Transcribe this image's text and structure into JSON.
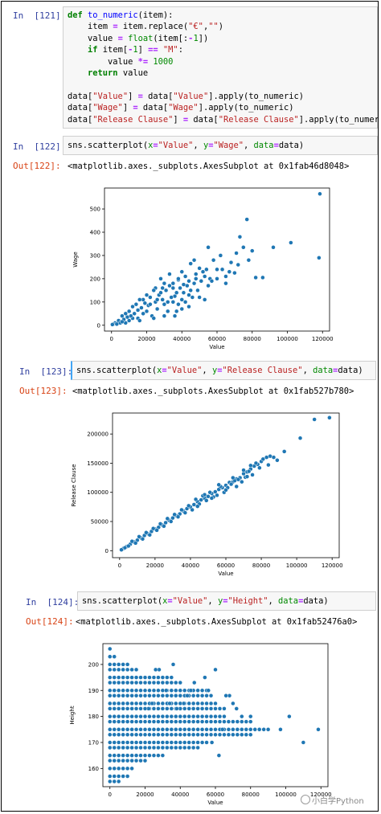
{
  "cells": [
    {
      "in_prompt": "In  [121]:",
      "code": [
        "def to_numeric(item):",
        "    item = item.replace(\"€\",\"\")",
        "    value = float(item[:-1])",
        "    if item[-1] == \"M\":",
        "        value *= 1000",
        "    return value",
        "",
        "data[\"Value\"] = data[\"Value\"].apply(to_numeric)",
        "data[\"Wage\"] = data[\"Wage\"].apply(to_numeric)",
        "data[\"Release Clause\"] = data[\"Release Clause\"].apply(to_numeric)"
      ]
    },
    {
      "in_prompt": "In  [122]:",
      "code": "sns.scatterplot(x=\"Value\", y=\"Wage\", data=data)",
      "out_prompt": "Out[122]:",
      "out_text": "<matplotlib.axes._subplots.AxesSubplot at 0x1fab46d8048>"
    },
    {
      "in_prompt": "In  [123]:",
      "code": "sns.scatterplot(x=\"Value\", y=\"Release Clause\", data=data)",
      "out_prompt": "Out[123]:",
      "out_text": "<matplotlib.axes._subplots.AxesSubplot at 0x1fab527b780>"
    },
    {
      "in_prompt": "In  [124]:",
      "code": "sns.scatterplot(x=\"Value\", y=\"Height\", data=data)",
      "out_prompt": "Out[124]:",
      "out_text": "<matplotlib.axes._subplots.AxesSubplot at 0x1fab52476a0>"
    }
  ],
  "watermark": "小白学Python",
  "colors": {
    "point": "#1f77b4",
    "in": "#303f9f",
    "out": "#d84315"
  },
  "chart_data": [
    {
      "type": "scatter",
      "xlabel": "Value",
      "ylabel": "Wage",
      "xticks": [
        0,
        20000,
        40000,
        60000,
        80000,
        100000,
        120000
      ],
      "yticks": [
        0,
        100,
        200,
        300,
        400,
        500
      ],
      "xlim": [
        -4000,
        124000
      ],
      "ylim": [
        -25,
        590
      ],
      "points": [
        [
          118500,
          565
        ],
        [
          118000,
          290
        ],
        [
          102000,
          355
        ],
        [
          92000,
          335
        ],
        [
          82000,
          205
        ],
        [
          77000,
          455
        ],
        [
          75000,
          335
        ],
        [
          71000,
          310
        ],
        [
          73000,
          380
        ],
        [
          80000,
          320
        ],
        [
          68000,
          270
        ],
        [
          86000,
          205
        ],
        [
          70000,
          225
        ],
        [
          60000,
          240
        ],
        [
          65000,
          210
        ],
        [
          62000,
          300
        ],
        [
          55000,
          335
        ],
        [
          58000,
          280
        ],
        [
          50000,
          245
        ],
        [
          47000,
          280
        ],
        [
          45000,
          265
        ],
        [
          52000,
          230
        ],
        [
          40000,
          230
        ],
        [
          42000,
          210
        ],
        [
          38000,
          195
        ],
        [
          48000,
          200
        ],
        [
          55000,
          170
        ],
        [
          56000,
          200
        ],
        [
          43000,
          170
        ],
        [
          35000,
          160
        ],
        [
          36000,
          125
        ],
        [
          30000,
          180
        ],
        [
          33000,
          220
        ],
        [
          28000,
          200
        ],
        [
          25000,
          160
        ],
        [
          27000,
          130
        ],
        [
          24000,
          150
        ],
        [
          20000,
          130
        ],
        [
          22000,
          120
        ],
        [
          18000,
          110
        ],
        [
          16000,
          110
        ],
        [
          14000,
          90
        ],
        [
          12000,
          80
        ],
        [
          10000,
          60
        ],
        [
          8000,
          50
        ],
        [
          6000,
          40
        ],
        [
          4000,
          20
        ],
        [
          2000,
          10
        ],
        [
          1000,
          5
        ],
        [
          500,
          3
        ],
        [
          35000,
          100
        ],
        [
          38000,
          90
        ],
        [
          40000,
          110
        ],
        [
          32000,
          60
        ],
        [
          30000,
          90
        ],
        [
          45000,
          150
        ],
        [
          50000,
          120
        ],
        [
          60000,
          200
        ],
        [
          65000,
          180
        ],
        [
          44000,
          80
        ],
        [
          42000,
          100
        ],
        [
          46000,
          120
        ],
        [
          36000,
          40
        ],
        [
          34000,
          120
        ],
        [
          29000,
          110
        ],
        [
          26000,
          70
        ],
        [
          23000,
          40
        ],
        [
          20000,
          60
        ],
        [
          18000,
          50
        ],
        [
          15000,
          30
        ],
        [
          12000,
          30
        ],
        [
          10000,
          20
        ],
        [
          8000,
          10
        ],
        [
          5000,
          10
        ],
        [
          3000,
          5
        ],
        [
          21000,
          85
        ],
        [
          19000,
          95
        ],
        [
          17000,
          75
        ],
        [
          15000,
          65
        ],
        [
          13000,
          50
        ],
        [
          11000,
          40
        ],
        [
          9000,
          35
        ],
        [
          7000,
          25
        ],
        [
          6000,
          15
        ],
        [
          25000,
          100
        ],
        [
          28000,
          140
        ],
        [
          31000,
          150
        ],
        [
          33000,
          170
        ],
        [
          37000,
          140
        ],
        [
          39000,
          160
        ],
        [
          41000,
          140
        ],
        [
          44000,
          190
        ],
        [
          47000,
          180
        ],
        [
          49000,
          150
        ],
        [
          53000,
          210
        ],
        [
          57000,
          190
        ],
        [
          63000,
          240
        ],
        [
          67000,
          230
        ],
        [
          72000,
          260
        ],
        [
          78000,
          280
        ],
        [
          37000,
          60
        ],
        [
          53000,
          110
        ],
        [
          40000,
          70
        ],
        [
          30000,
          40
        ],
        [
          16000,
          20
        ],
        [
          24000,
          30
        ],
        [
          22000,
          90
        ],
        [
          26000,
          110
        ],
        [
          29000,
          160
        ],
        [
          32000,
          100
        ],
        [
          35000,
          180
        ],
        [
          38000,
          200
        ],
        [
          41000,
          175
        ],
        [
          44000,
          130
        ],
        [
          48000,
          220
        ],
        [
          51000,
          190
        ],
        [
          54000,
          240
        ]
      ]
    },
    {
      "type": "scatter",
      "xlabel": "Value",
      "ylabel": "Release Clause",
      "xticks": [
        0,
        20000,
        40000,
        60000,
        80000,
        100000,
        120000
      ],
      "yticks": [
        0,
        50000,
        100000,
        150000,
        200000
      ],
      "xlim": [
        -4000,
        124000
      ],
      "ylim": [
        -12000,
        236000
      ],
      "points": [
        [
          118500,
          228000
        ],
        [
          110000,
          225000
        ],
        [
          102000,
          193000
        ],
        [
          93000,
          170000
        ],
        [
          89000,
          155000
        ],
        [
          85000,
          162000
        ],
        [
          83000,
          160000
        ],
        [
          80000,
          153000
        ],
        [
          78000,
          148000
        ],
        [
          76000,
          145000
        ],
        [
          74000,
          140000
        ],
        [
          72000,
          135000
        ],
        [
          70000,
          132000
        ],
        [
          68000,
          125000
        ],
        [
          66000,
          123000
        ],
        [
          64000,
          118000
        ],
        [
          62000,
          117000
        ],
        [
          60000,
          112000
        ],
        [
          58000,
          108000
        ],
        [
          56000,
          105000
        ],
        [
          54000,
          101000
        ],
        [
          52000,
          98000
        ],
        [
          50000,
          93000
        ],
        [
          48000,
          90000
        ],
        [
          46000,
          87000
        ],
        [
          44000,
          84000
        ],
        [
          42000,
          79000
        ],
        [
          40000,
          75000
        ],
        [
          38000,
          72000
        ],
        [
          36000,
          68000
        ],
        [
          34000,
          63000
        ],
        [
          32000,
          60000
        ],
        [
          30000,
          56000
        ],
        [
          28000,
          52000
        ],
        [
          26000,
          48000
        ],
        [
          24000,
          44000
        ],
        [
          22000,
          40000
        ],
        [
          20000,
          37000
        ],
        [
          18000,
          33000
        ],
        [
          16000,
          29000
        ],
        [
          14000,
          26000
        ],
        [
          12000,
          22000
        ],
        [
          10000,
          18000
        ],
        [
          8000,
          15000
        ],
        [
          6000,
          11000
        ],
        [
          4000,
          7000
        ],
        [
          2000,
          3500
        ],
        [
          1000,
          1500
        ],
        [
          59000,
          100000
        ],
        [
          61000,
          108000
        ],
        [
          63000,
          114000
        ],
        [
          65000,
          120000
        ],
        [
          67000,
          122000
        ],
        [
          69000,
          118000
        ],
        [
          71000,
          126000
        ],
        [
          73000,
          136000
        ],
        [
          75000,
          130000
        ],
        [
          77000,
          150000
        ],
        [
          79000,
          142000
        ],
        [
          81000,
          157000
        ],
        [
          84000,
          147000
        ],
        [
          87000,
          160000
        ],
        [
          55000,
          95000
        ],
        [
          57000,
          110000
        ],
        [
          53000,
          92000
        ],
        [
          51000,
          100000
        ],
        [
          49000,
          86000
        ],
        [
          47000,
          94000
        ],
        [
          45000,
          80000
        ],
        [
          43000,
          88000
        ],
        [
          41000,
          70000
        ],
        [
          39000,
          77000
        ],
        [
          37000,
          65000
        ],
        [
          35000,
          70000
        ],
        [
          33000,
          58000
        ],
        [
          31000,
          62000
        ],
        [
          29000,
          50000
        ],
        [
          27000,
          55000
        ],
        [
          25000,
          42000
        ],
        [
          23000,
          46000
        ],
        [
          21000,
          35000
        ],
        [
          19000,
          38000
        ],
        [
          17000,
          27000
        ],
        [
          15000,
          31000
        ],
        [
          13000,
          20000
        ],
        [
          11000,
          24000
        ],
        [
          9000,
          13000
        ],
        [
          7000,
          16000
        ],
        [
          5000,
          8000
        ],
        [
          3000,
          5000
        ],
        [
          44000,
          76000
        ],
        [
          48000,
          96000
        ],
        [
          52000,
          90000
        ],
        [
          56000,
          113000
        ],
        [
          60000,
          104000
        ],
        [
          64000,
          125000
        ],
        [
          66000,
          110000
        ],
        [
          70000,
          138000
        ],
        [
          72000,
          127000
        ],
        [
          74000,
          146000
        ]
      ]
    },
    {
      "type": "scatter",
      "xlabel": "Value",
      "ylabel": "Height",
      "xticks": [
        0,
        20000,
        40000,
        60000,
        80000,
        100000,
        120000
      ],
      "yticks": [
        160,
        170,
        180,
        190,
        200
      ],
      "xlim": [
        -4000,
        124000
      ],
      "ylim": [
        153,
        208
      ],
      "x_cutoffs": [
        [
          155,
          5000
        ],
        [
          157,
          10000
        ],
        [
          160,
          14000
        ],
        [
          163,
          20000
        ],
        [
          165,
          32000
        ],
        [
          168,
          52000
        ],
        [
          170,
          57000
        ],
        [
          173,
          82000
        ],
        [
          175,
          90000
        ],
        [
          178,
          80000
        ],
        [
          180,
          67000
        ],
        [
          183,
          66000
        ],
        [
          185,
          62000
        ],
        [
          188,
          58000
        ],
        [
          190,
          57000
        ],
        [
          193,
          40000
        ],
        [
          195,
          36000
        ],
        [
          198,
          16000
        ],
        [
          200,
          10000
        ],
        [
          203,
          3000
        ],
        [
          206,
          0
        ]
      ],
      "extras": [
        [
          118500,
          175
        ],
        [
          110000,
          170
        ],
        [
          102000,
          180
        ],
        [
          97000,
          175
        ],
        [
          85000,
          175
        ],
        [
          80000,
          180
        ],
        [
          75000,
          180
        ],
        [
          72000,
          183
        ],
        [
          70000,
          185
        ],
        [
          68000,
          188
        ],
        [
          66000,
          188
        ],
        [
          64000,
          175
        ],
        [
          62000,
          165
        ],
        [
          60000,
          198
        ],
        [
          58000,
          170
        ],
        [
          56000,
          190
        ],
        [
          54000,
          195
        ],
        [
          50000,
          190
        ],
        [
          48000,
          193
        ],
        [
          46000,
          190
        ],
        [
          44000,
          188
        ],
        [
          42000,
          185
        ],
        [
          40000,
          178
        ],
        [
          38000,
          183
        ],
        [
          36000,
          200
        ],
        [
          34000,
          185
        ],
        [
          32000,
          190
        ],
        [
          30000,
          195
        ],
        [
          28000,
          198
        ],
        [
          26000,
          198
        ],
        [
          24000,
          185
        ],
        [
          22000,
          183
        ],
        [
          20000,
          183
        ]
      ]
    }
  ]
}
